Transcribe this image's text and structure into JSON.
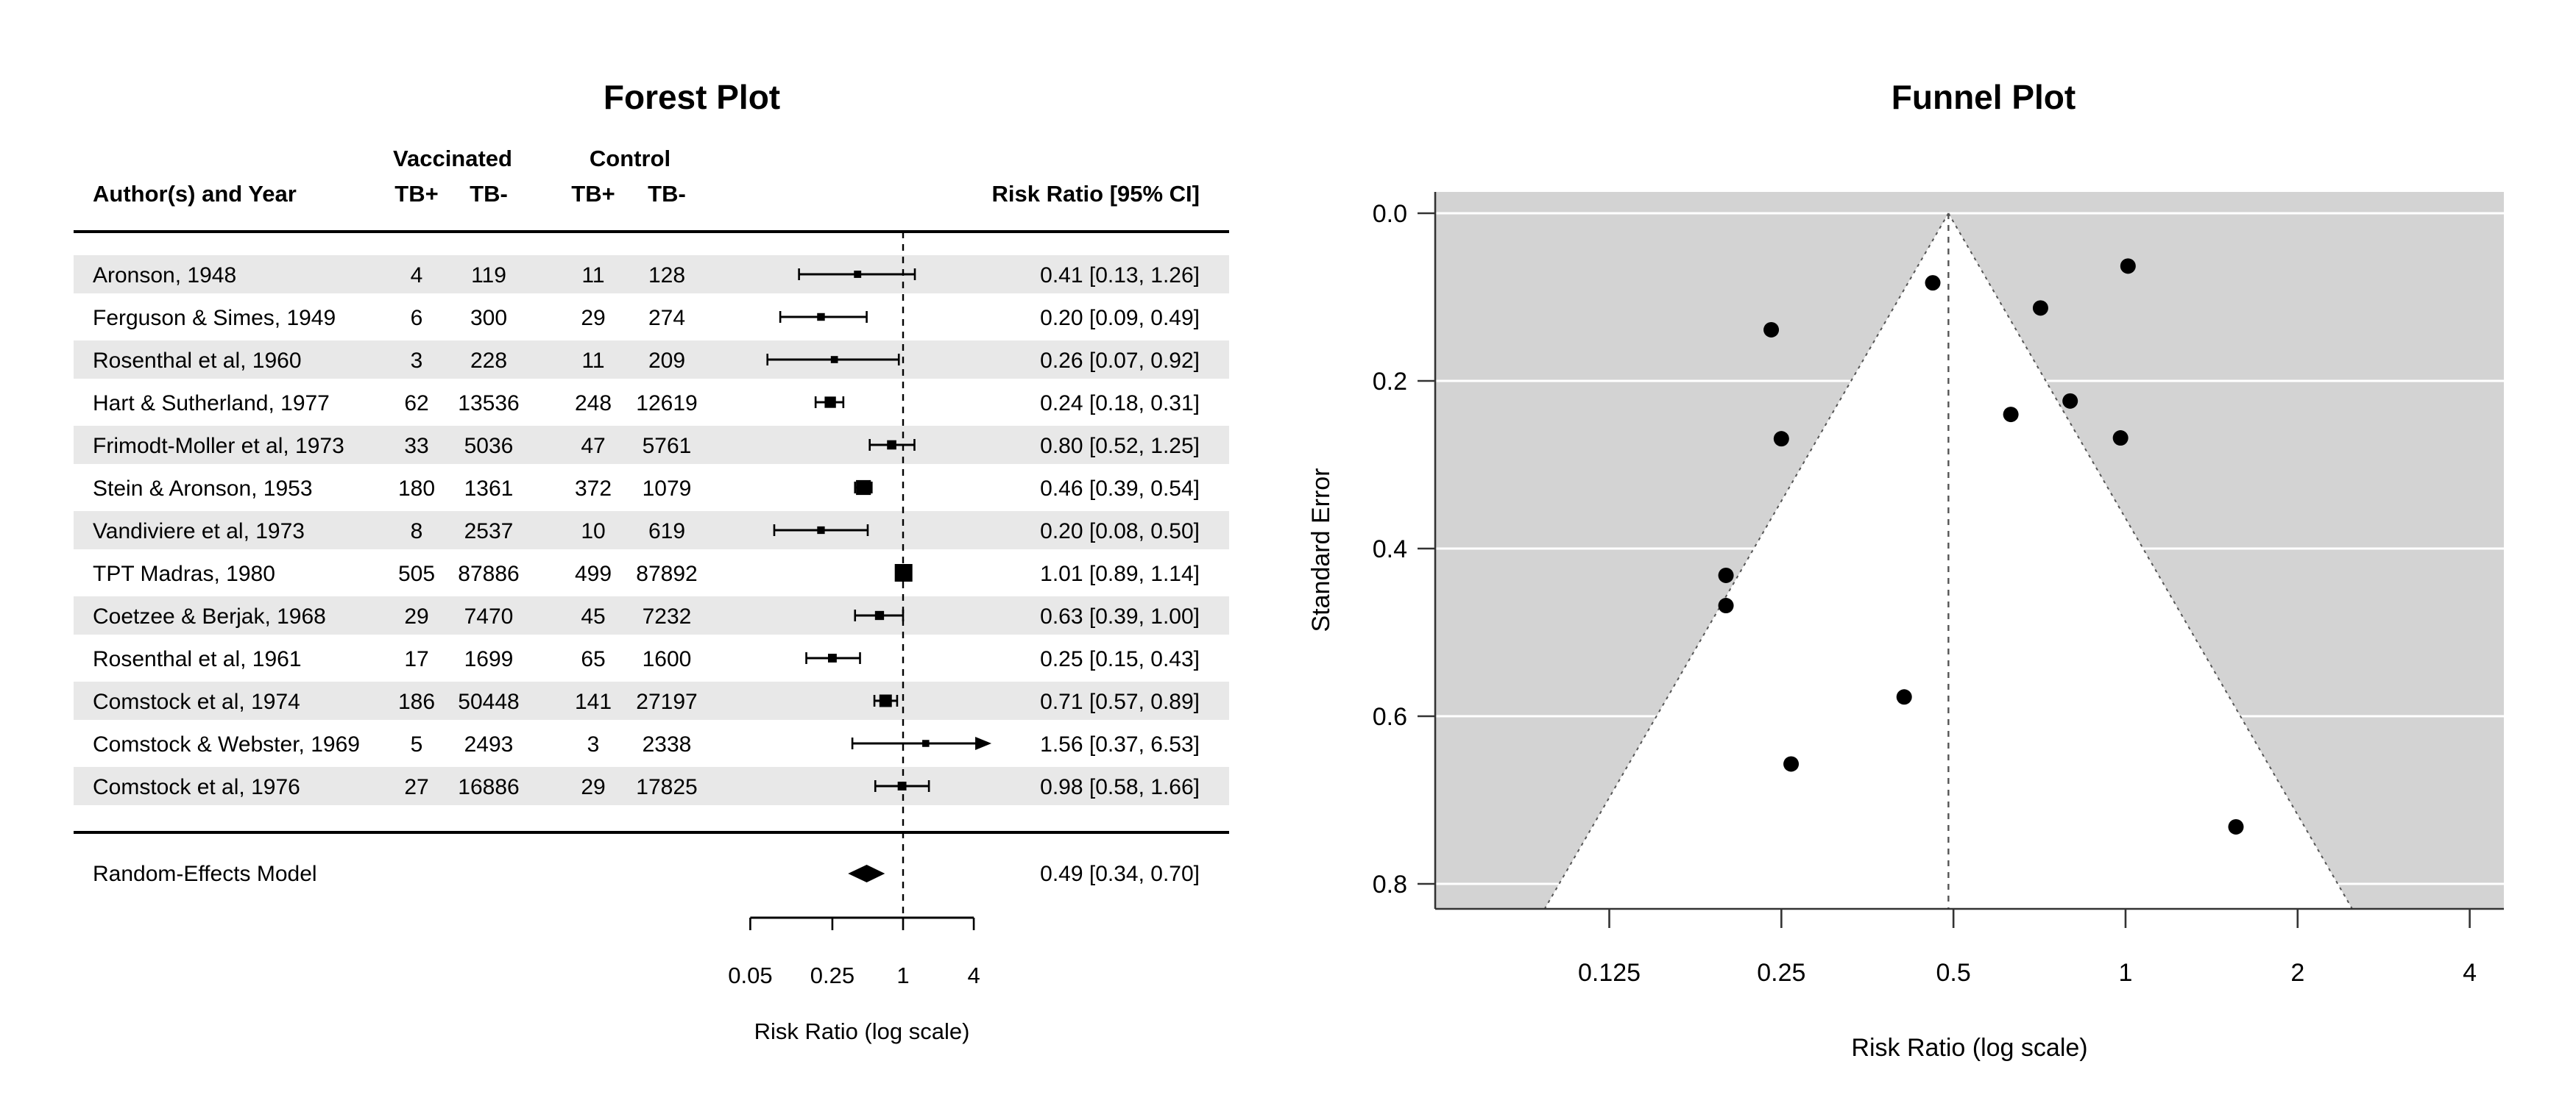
{
  "colors": {
    "row_band": "#e8e8e8",
    "funnel_background": "#d3d3d3",
    "funnel_region": "#ffffff",
    "gridline": "#ffffff",
    "point": "#000000",
    "line": "#000000",
    "dashed_line": "#4a4a4a",
    "axis": "#333333"
  },
  "forest": {
    "title": "Forest Plot",
    "group_headers": {
      "vaccinated": "Vaccinated",
      "control": "Control"
    },
    "col_headers": {
      "author": "Author(s) and Year",
      "v_tb_pos": "TB+",
      "v_tb_neg": "TB-",
      "c_tb_pos": "TB+",
      "c_tb_neg": "TB-",
      "estimate": "Risk Ratio [95% CI]"
    },
    "summary": {
      "label": "Random-Effects Model",
      "estimate_label": "0.49 [0.34, 0.70]",
      "rr": 0.49,
      "lo": 0.34,
      "hi": 0.7
    },
    "axis": {
      "label": "Risk Ratio (log scale)",
      "ticks": [
        0.05,
        0.25,
        1,
        4
      ],
      "tick_labels": [
        "0.05",
        "0.25",
        "1",
        "4"
      ]
    }
  },
  "funnel": {
    "title": "Funnel Plot",
    "xlabel": "Risk Ratio (log scale)",
    "ylabel": "Standard Error",
    "x_ticks": [
      0.125,
      0.25,
      0.5,
      1,
      2,
      4
    ],
    "x_tick_labels": [
      "0.125",
      "0.25",
      "0.5",
      "1",
      "2",
      "4"
    ],
    "y_ticks": [
      0.0,
      0.2,
      0.4,
      0.6,
      0.8
    ],
    "y_tick_labels": [
      "0.0",
      "0.2",
      "0.4",
      "0.6",
      "0.8"
    ],
    "center_estimate": 0.49,
    "ci_level_z": 1.96
  },
  "chart_data": [
    {
      "type": "table",
      "title": "Forest Plot",
      "xlabel": "Risk Ratio (log scale)",
      "x_axis": {
        "scale": "log",
        "ticks": [
          0.05,
          0.25,
          1,
          4
        ],
        "reference_line": 1
      },
      "columns": [
        "Author(s) and Year",
        "Vaccinated TB+",
        "Vaccinated TB-",
        "Control TB+",
        "Control TB-",
        "Risk Ratio [95% CI]"
      ],
      "rows": [
        {
          "author": "Aronson, 1948",
          "vp": "4",
          "vn": "119",
          "cp": "11",
          "cn": "128",
          "rr": 0.41,
          "lo": 0.13,
          "hi": 1.26,
          "label": "0.41 [0.13, 1.26]"
        },
        {
          "author": "Ferguson & Simes, 1949",
          "vp": "6",
          "vn": "300",
          "cp": "29",
          "cn": "274",
          "rr": 0.2,
          "lo": 0.09,
          "hi": 0.49,
          "label": "0.20 [0.09, 0.49]"
        },
        {
          "author": "Rosenthal et al, 1960",
          "vp": "3",
          "vn": "228",
          "cp": "11",
          "cn": "209",
          "rr": 0.26,
          "lo": 0.07,
          "hi": 0.92,
          "label": "0.26 [0.07, 0.92]"
        },
        {
          "author": "Hart & Sutherland, 1977",
          "vp": "62",
          "vn": "13536",
          "cp": "248",
          "cn": "12619",
          "rr": 0.24,
          "lo": 0.18,
          "hi": 0.31,
          "label": "0.24 [0.18, 0.31]"
        },
        {
          "author": "Frimodt-Moller et al, 1973",
          "vp": "33",
          "vn": "5036",
          "cp": "47",
          "cn": "5761",
          "rr": 0.8,
          "lo": 0.52,
          "hi": 1.25,
          "label": "0.80 [0.52, 1.25]"
        },
        {
          "author": "Stein & Aronson, 1953",
          "vp": "180",
          "vn": "1361",
          "cp": "372",
          "cn": "1079",
          "rr": 0.46,
          "lo": 0.39,
          "hi": 0.54,
          "label": "0.46 [0.39, 0.54]"
        },
        {
          "author": "Vandiviere et al, 1973",
          "vp": "8",
          "vn": "2537",
          "cp": "10",
          "cn": "619",
          "rr": 0.2,
          "lo": 0.08,
          "hi": 0.5,
          "label": "0.20 [0.08, 0.50]"
        },
        {
          "author": "TPT Madras, 1980",
          "vp": "505",
          "vn": "87886",
          "cp": "499",
          "cn": "87892",
          "rr": 1.01,
          "lo": 0.89,
          "hi": 1.14,
          "label": "1.01 [0.89, 1.14]"
        },
        {
          "author": "Coetzee & Berjak, 1968",
          "vp": "29",
          "vn": "7470",
          "cp": "45",
          "cn": "7232",
          "rr": 0.63,
          "lo": 0.39,
          "hi": 1.0,
          "label": "0.63 [0.39, 1.00]"
        },
        {
          "author": "Rosenthal et al, 1961",
          "vp": "17",
          "vn": "1699",
          "cp": "65",
          "cn": "1600",
          "rr": 0.25,
          "lo": 0.15,
          "hi": 0.43,
          "label": "0.25 [0.15, 0.43]"
        },
        {
          "author": "Comstock et al, 1974",
          "vp": "186",
          "vn": "50448",
          "cp": "141",
          "cn": "27197",
          "rr": 0.71,
          "lo": 0.57,
          "hi": 0.89,
          "label": "0.71 [0.57, 0.89]"
        },
        {
          "author": "Comstock & Webster, 1969",
          "vp": "5",
          "vn": "2493",
          "cp": "3",
          "cn": "2338",
          "rr": 1.56,
          "lo": 0.37,
          "hi": 6.53,
          "label": "1.56 [0.37, 6.53]"
        },
        {
          "author": "Comstock et al, 1976",
          "vp": "27",
          "vn": "16886",
          "cp": "29",
          "cn": "17825",
          "rr": 0.98,
          "lo": 0.58,
          "hi": 1.66,
          "label": "0.98 [0.58, 1.66]"
        }
      ],
      "summary_row": {
        "author": "Random-Effects Model",
        "rr": 0.49,
        "lo": 0.34,
        "hi": 0.7,
        "label": "0.49 [0.34, 0.70]"
      }
    },
    {
      "type": "scatter",
      "title": "Funnel Plot",
      "xlabel": "Risk Ratio (log scale)",
      "ylabel": "Standard Error",
      "x_scale": "log",
      "xlim": [
        0.062,
        4.59
      ],
      "ylim_reversed": [
        0,
        0.83
      ],
      "x_ticks": [
        0.125,
        0.25,
        0.5,
        1,
        2,
        4
      ],
      "y_ticks": [
        0.0,
        0.2,
        0.4,
        0.6,
        0.8
      ],
      "grid": "white horizontal lines on gray background",
      "funnel_center": 0.49,
      "points": [
        {
          "x": 0.41,
          "y": 0.577
        },
        {
          "x": 0.2,
          "y": 0.432
        },
        {
          "x": 0.26,
          "y": 0.657
        },
        {
          "x": 0.24,
          "y": 0.139
        },
        {
          "x": 0.8,
          "y": 0.224
        },
        {
          "x": 0.46,
          "y": 0.083
        },
        {
          "x": 0.2,
          "y": 0.468
        },
        {
          "x": 1.01,
          "y": 0.063
        },
        {
          "x": 0.63,
          "y": 0.24
        },
        {
          "x": 0.25,
          "y": 0.269
        },
        {
          "x": 0.71,
          "y": 0.113
        },
        {
          "x": 1.56,
          "y": 0.732
        },
        {
          "x": 0.98,
          "y": 0.268
        }
      ]
    }
  ]
}
